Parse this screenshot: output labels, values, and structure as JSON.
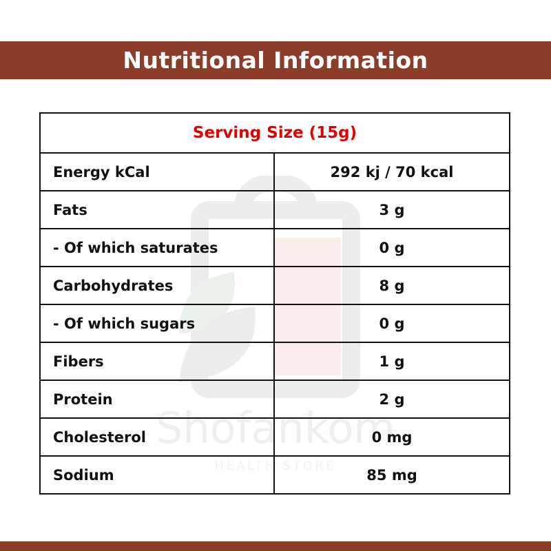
{
  "banner": {
    "title": "Nutritional Information",
    "color": "#8b3c2a"
  },
  "watermark": {
    "brand": "Shofankom",
    "tagline": "HEALTH STORE",
    "icon": "shopping-bag-leaf-icon"
  },
  "table": {
    "serving_size": "Serving Size (15g)",
    "serving_color": "#e00000",
    "rows": [
      {
        "label": "Energy kCal",
        "value": "292 kj / 70 kcal"
      },
      {
        "label": "Fats",
        "value": "3 g"
      },
      {
        "label": "- Of which saturates",
        "value": "0 g"
      },
      {
        "label": "Carbohydrates",
        "value": "8 g"
      },
      {
        "label": "- Of which sugars",
        "value": "0 g"
      },
      {
        "label": "Fibers",
        "value": "1 g"
      },
      {
        "label": "Protein",
        "value": "2 g"
      },
      {
        "label": "Cholesterol",
        "value": "0 mg"
      },
      {
        "label": "Sodium",
        "value": "85 mg"
      }
    ]
  }
}
